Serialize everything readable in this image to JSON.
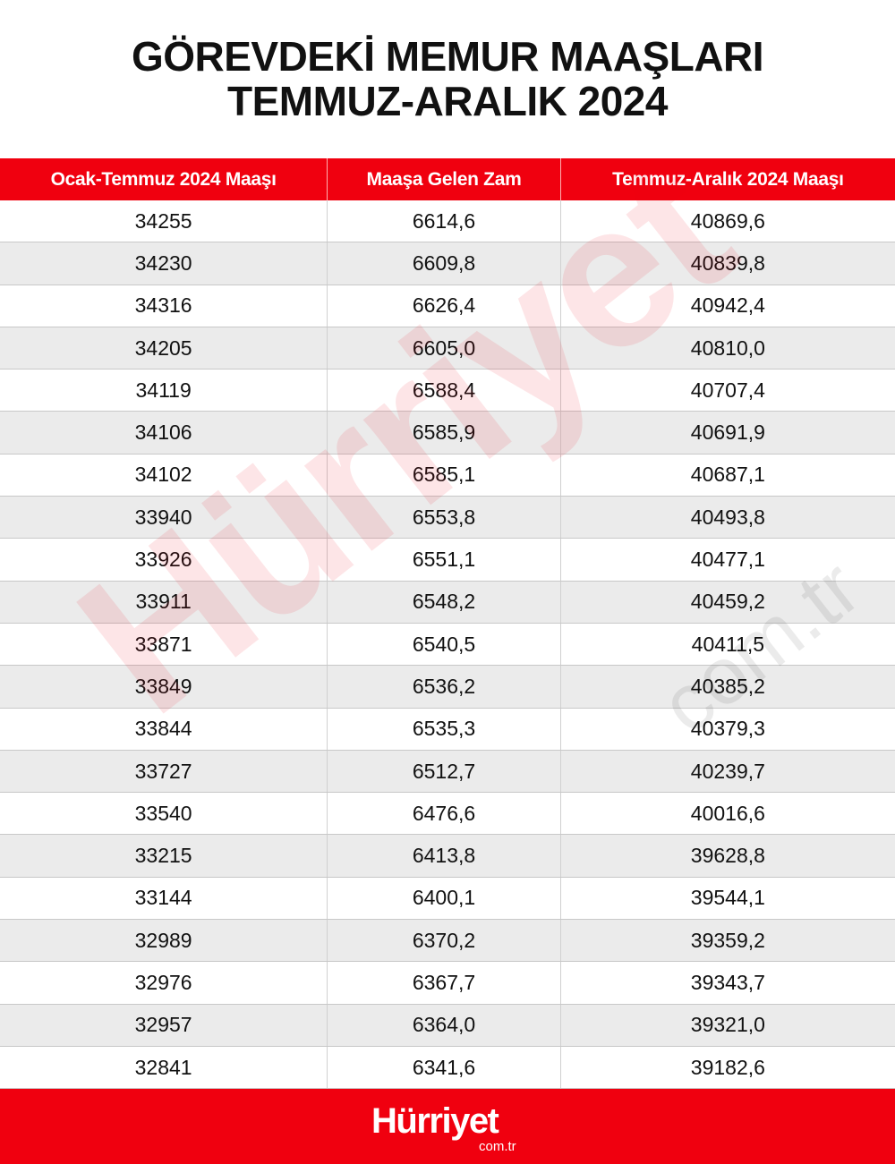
{
  "title": {
    "line1": "GÖREVDEKİ MEMUR MAAŞLARI",
    "line2": "TEMMUZ-ARALIK 2024"
  },
  "table": {
    "headers": [
      "Ocak-Temmuz 2024 Maaşı",
      "Maaşa Gelen Zam",
      "Temmuz-Aralık 2024 Maaşı"
    ],
    "rows": [
      [
        "34255",
        "6614,6",
        "40869,6"
      ],
      [
        "34230",
        "6609,8",
        "40839,8"
      ],
      [
        "34316",
        "6626,4",
        "40942,4"
      ],
      [
        "34205",
        "6605,0",
        "40810,0"
      ],
      [
        "34119",
        "6588,4",
        "40707,4"
      ],
      [
        "34106",
        "6585,9",
        "40691,9"
      ],
      [
        "34102",
        "6585,1",
        "40687,1"
      ],
      [
        "33940",
        "6553,8",
        "40493,8"
      ],
      [
        "33926",
        "6551,1",
        "40477,1"
      ],
      [
        "33911",
        "6548,2",
        "40459,2"
      ],
      [
        "33871",
        "6540,5",
        "40411,5"
      ],
      [
        "33849",
        "6536,2",
        "40385,2"
      ],
      [
        "33844",
        "6535,3",
        "40379,3"
      ],
      [
        "33727",
        "6512,7",
        "40239,7"
      ],
      [
        "33540",
        "6476,6",
        "40016,6"
      ],
      [
        "33215",
        "6413,8",
        "39628,8"
      ],
      [
        "33144",
        "6400,1",
        "39544,1"
      ],
      [
        "32989",
        "6370,2",
        "39359,2"
      ],
      [
        "32976",
        "6367,7",
        "39343,7"
      ],
      [
        "32957",
        "6364,0",
        "39321,0"
      ],
      [
        "32841",
        "6341,6",
        "39182,6"
      ]
    ]
  },
  "watermark": {
    "brand": "Hürriyet",
    "domain": "com.tr"
  },
  "footer": {
    "logo": "Hürriyet",
    "domain": "com.tr"
  },
  "colors": {
    "brand_red": "#f0000f",
    "stripe_gray": "#ebebeb"
  }
}
